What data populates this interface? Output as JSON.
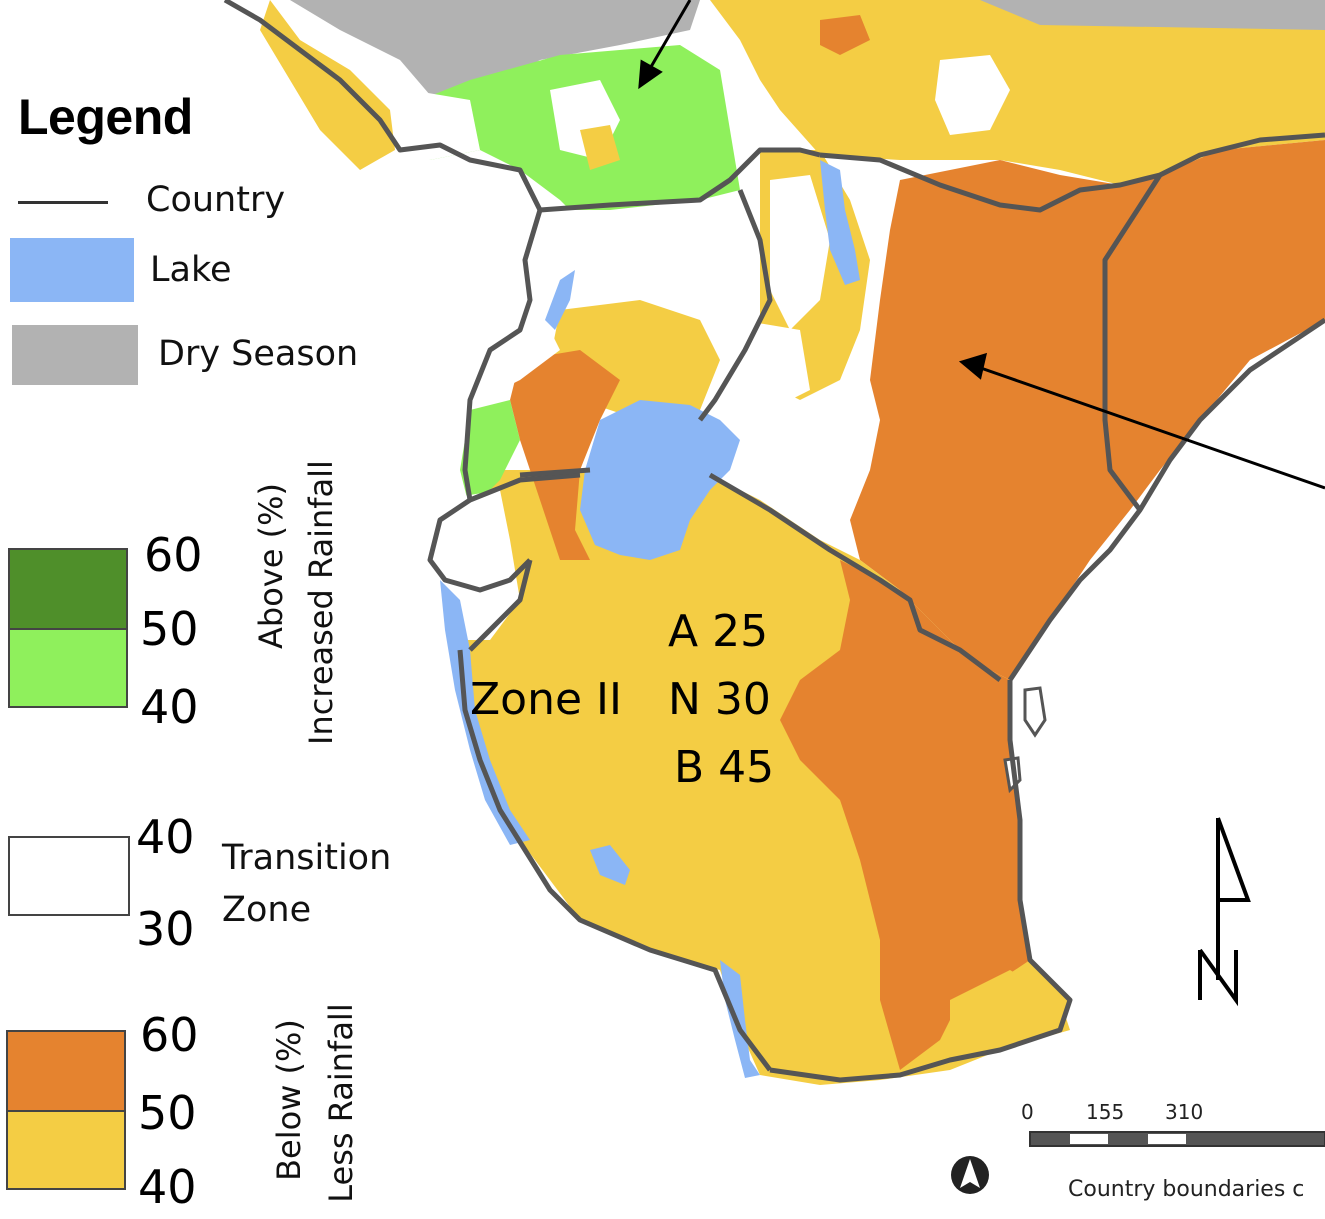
{
  "legend": {
    "title": "Legend",
    "country": "Country",
    "lake": "Lake",
    "dry": "Dry Season",
    "above_line1": "Above (%)",
    "above_line2": "Increased Rainfall",
    "below_line1": "Below (%)",
    "below_line2": "Less Rainfall",
    "transition_line1": "Transition",
    "transition_line2": "Zone",
    "above_ticks": [
      "60",
      "50",
      "40"
    ],
    "transition_ticks": [
      "40",
      "30"
    ],
    "below_ticks": [
      "60",
      "50",
      "40"
    ]
  },
  "zone_label": {
    "name": "Zone II",
    "a": "A 25",
    "n": "N 30",
    "b": "B 45"
  },
  "scale_bar": {
    "ticks": [
      "0",
      "155",
      "310"
    ]
  },
  "north_arrow": "N",
  "credit": "Country boundaries c",
  "colors": {
    "lake": "#8bb6f5",
    "dry": "#b2b2b2",
    "above_40_50": "#8ff05c",
    "above_50_60": "#4f8f2a",
    "below_40_50": "#f4cd44",
    "below_50_60": "#e5832f",
    "transition": "#ffffff",
    "border": "#555555"
  }
}
